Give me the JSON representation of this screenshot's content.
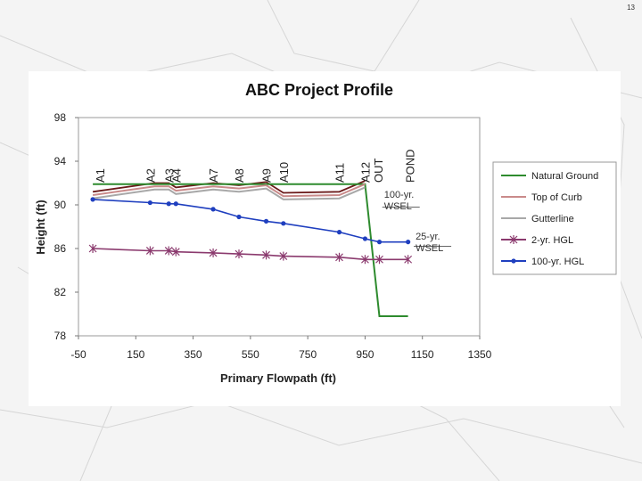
{
  "page": {
    "number": "13"
  },
  "chart_data": {
    "type": "line",
    "title": "ABC Project Profile",
    "xlabel": "Primary Flowpath (ft)",
    "ylabel": "Height (ft)",
    "xlim": [
      -50,
      1350
    ],
    "ylim": [
      78,
      98
    ],
    "xticks": [
      -50,
      150,
      350,
      550,
      750,
      950,
      1150,
      1350
    ],
    "yticks": [
      78,
      82,
      86,
      90,
      94,
      98
    ],
    "grid": false,
    "legend_position": "right",
    "colors": {
      "natural_ground": "#2e8b2e",
      "top_of_curb": "#c98a8a",
      "gutterline": "#a8a8a8",
      "two_yr": "#8b3a6e",
      "hundred_yr": "#1f3fbf",
      "crown": "#6b1a1a"
    },
    "series": [
      {
        "name": "Natural Ground",
        "key": "natural_ground",
        "marker": "none",
        "x": [
          0,
          160,
          950,
          1000,
          1100
        ],
        "y": [
          91.9,
          91.9,
          91.9,
          79.8,
          79.8
        ]
      },
      {
        "name": "Top of Curb",
        "key": "top_of_curb",
        "marker": "none",
        "x": [
          0,
          215,
          265,
          290,
          420,
          510,
          605,
          665,
          860,
          950
        ],
        "y": [
          90.9,
          91.7,
          91.7,
          91.3,
          91.7,
          91.5,
          91.8,
          90.8,
          90.9,
          91.9
        ]
      },
      {
        "name": "Gutterline",
        "key": "gutterline",
        "marker": "none",
        "x": [
          0,
          215,
          265,
          290,
          420,
          510,
          605,
          665,
          860,
          950
        ],
        "y": [
          90.6,
          91.4,
          91.4,
          91.0,
          91.4,
          91.2,
          91.5,
          90.5,
          90.6,
          91.6
        ]
      },
      {
        "name": "2-yr. HGL",
        "key": "two_yr",
        "marker": "asterisk",
        "x": [
          0,
          200,
          265,
          290,
          420,
          510,
          605,
          665,
          860,
          950,
          1000,
          1100
        ],
        "y": [
          86.0,
          85.8,
          85.8,
          85.7,
          85.6,
          85.5,
          85.4,
          85.3,
          85.2,
          85.0,
          85.0,
          85.0
        ]
      },
      {
        "name": "100-yr. HGL",
        "key": "hundred_yr",
        "marker": "dot",
        "x": [
          0,
          200,
          265,
          290,
          420,
          510,
          605,
          665,
          860,
          950,
          1000,
          1100
        ],
        "y": [
          90.5,
          90.2,
          90.1,
          90.1,
          89.6,
          88.9,
          88.5,
          88.3,
          87.5,
          86.9,
          86.6,
          86.6
        ]
      }
    ],
    "crown_line": {
      "x": [
        0,
        215,
        265,
        290,
        420,
        510,
        605,
        665,
        860,
        950
      ],
      "y": [
        91.2,
        92.0,
        92.0,
        91.6,
        92.0,
        91.8,
        92.1,
        91.1,
        91.2,
        92.2
      ]
    },
    "structure_labels": [
      {
        "text": "A1",
        "x": 25
      },
      {
        "text": "A2",
        "x": 200
      },
      {
        "text": "A3",
        "x": 265
      },
      {
        "text": "A4",
        "x": 290
      },
      {
        "text": "A7",
        "x": 420
      },
      {
        "text": "A8",
        "x": 510
      },
      {
        "text": "A9",
        "x": 605
      },
      {
        "text": "A10",
        "x": 665
      },
      {
        "text": "A11",
        "x": 860
      },
      {
        "text": "A12",
        "x": 950
      },
      {
        "text": "OUT",
        "x": 995
      },
      {
        "text": "POND",
        "x": 1105
      }
    ],
    "annotations": [
      {
        "name": "wsel-100",
        "lines": [
          "100-yr.",
          "WSEL"
        ],
        "x": 1010,
        "y": 90.8,
        "ref_y": 89.8
      },
      {
        "name": "wsel-25",
        "lines": [
          "25-yr.",
          "WSEL"
        ],
        "x": 1120,
        "y": 87.0,
        "ref_y": 86.2
      }
    ]
  }
}
